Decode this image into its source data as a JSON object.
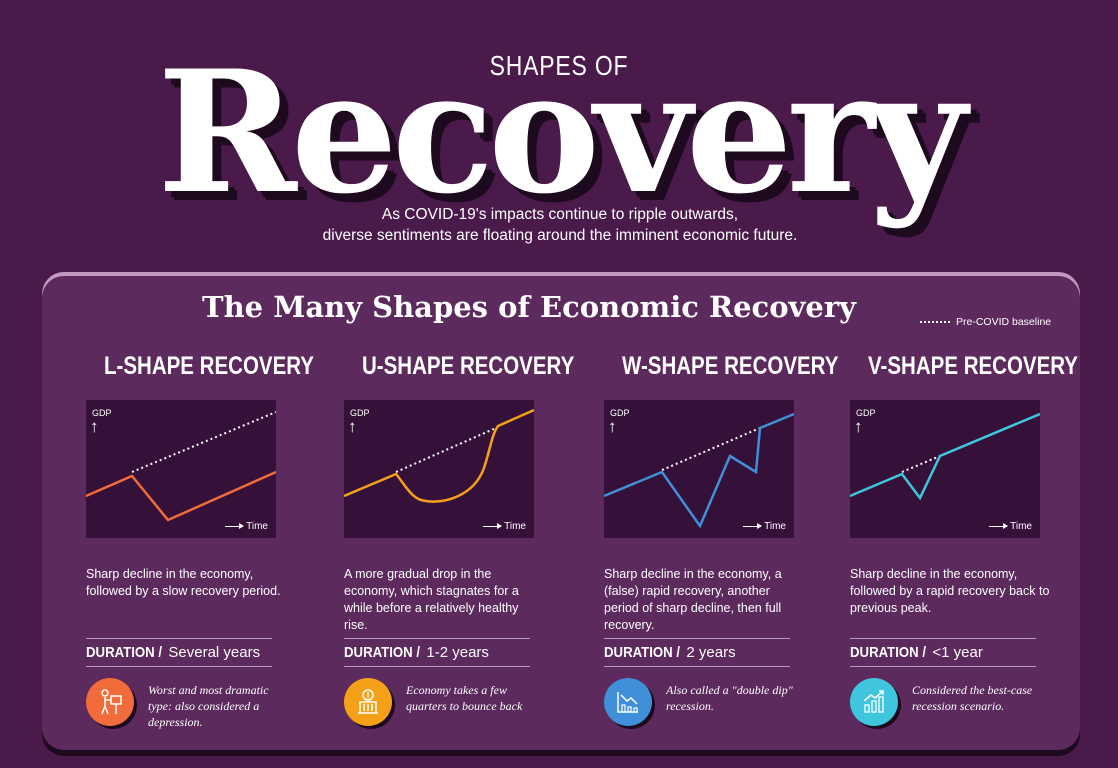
{
  "header": {
    "kicker": "SHAPES OF",
    "title": "Recovery",
    "intro_line1": "As COVID-19's impacts continue to ripple outwards,",
    "intro_line2": "diverse sentiments are floating around the imminent economic future."
  },
  "panel": {
    "title": "The Many Shapes of Economic Recovery",
    "legend_label": "Pre-COVID baseline"
  },
  "chart_labels": {
    "y": "GDP",
    "x": "Time"
  },
  "shapes": [
    {
      "title": "L-SHAPE RECOVERY",
      "description": "Sharp decline in the economy, followed by a slow recovery period.",
      "duration_key": "DURATION /",
      "duration_value": "Several years",
      "note": "Worst and most dramatic type: also considered a depression.",
      "color": "#f26b3a",
      "icon": "person-with-sign-icon"
    },
    {
      "title": "U-SHAPE RECOVERY",
      "description": "A more gradual drop in the economy, which stagnates for a while before a relatively healthy rise.",
      "duration_key": "DURATION /",
      "duration_value": "1-2 years",
      "note": "Economy takes a few quarters to bounce back",
      "color": "#f5a118",
      "icon": "coin-building-icon"
    },
    {
      "title": "W-SHAPE RECOVERY",
      "description": "Sharp decline in the economy, a (false) rapid recovery, another period of sharp decline, then full recovery.",
      "duration_key": "DURATION /",
      "duration_value": "2 years",
      "note": "Also called a \"double dip\" recession.",
      "color": "#3f8fd9",
      "icon": "chart-down-icon"
    },
    {
      "title": "V-SHAPE RECOVERY",
      "description": "Sharp decline in the economy, followed by a rapid recovery back to previous peak.",
      "duration_key": "DURATION /",
      "duration_value": "<1 year",
      "note": "Considered the best-case recession scenario.",
      "color": "#3fc6de",
      "icon": "chart-up-icon"
    }
  ]
}
